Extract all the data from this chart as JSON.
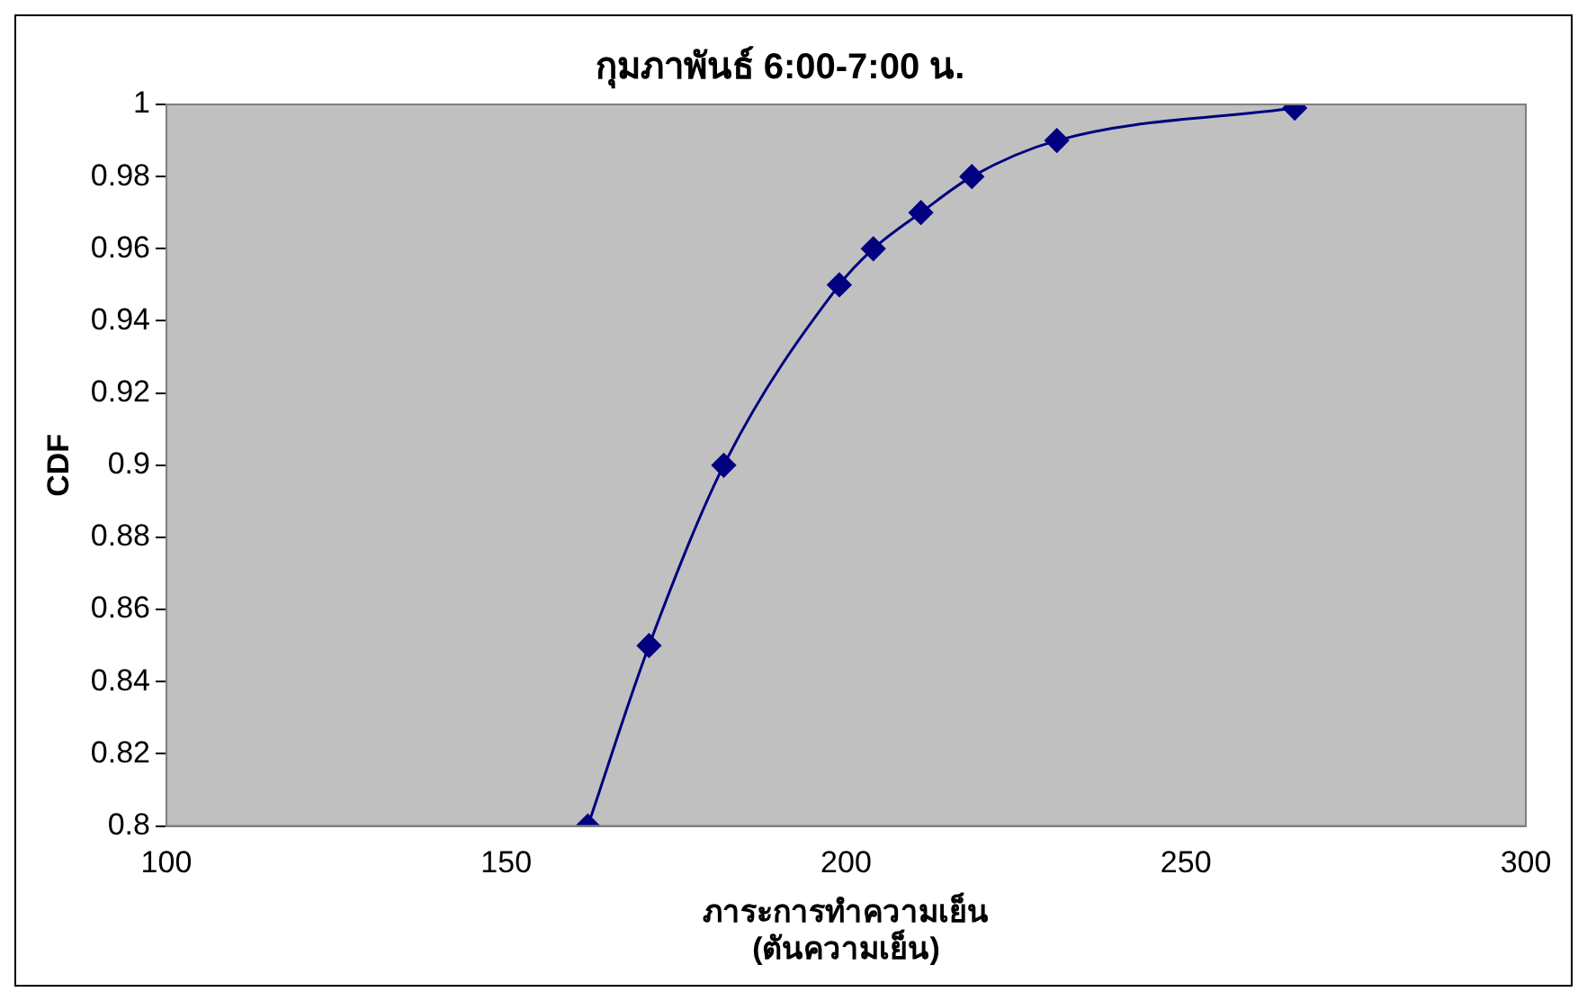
{
  "chart_data": {
    "type": "line",
    "title": "กุมภาพันธ์ 6:00-7:00 น.",
    "xlabel": "ภาระการทำความเย็น\n(ตันความเย็น)",
    "ylabel": "CDF",
    "x": [
      162,
      171,
      182,
      199,
      204,
      211,
      218.5,
      231,
      266
    ],
    "series": [
      {
        "color": "#000080",
        "values": [
          0.8,
          0.85,
          0.9,
          0.95,
          0.96,
          0.97,
          0.98,
          0.99,
          0.999
        ]
      }
    ],
    "xlim": [
      100,
      300
    ],
    "xticks": [
      100,
      150,
      200,
      250,
      300
    ],
    "ylim": [
      0.8,
      1
    ],
    "yticks": [
      0.8,
      0.82,
      0.84,
      0.86,
      0.88,
      0.9,
      0.92,
      0.94,
      0.96,
      0.98,
      1
    ],
    "grid": false,
    "legend": false,
    "marker": "diamond",
    "line_style": "solid"
  }
}
